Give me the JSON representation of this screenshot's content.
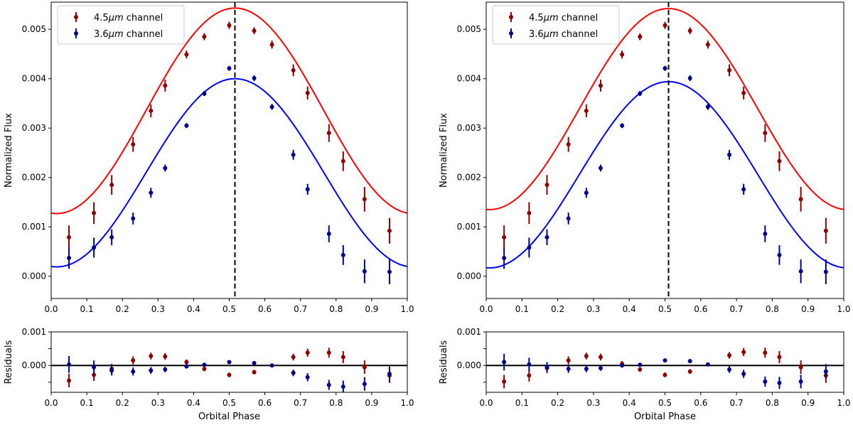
{
  "chart_data": [
    {
      "type": "scatter",
      "title": "",
      "panels": {
        "main": {
          "xlabel": "",
          "ylabel": "Normalized Flux",
          "xlim": [
            0.0,
            1.0
          ],
          "ylim": [
            -0.00045,
            0.00555
          ],
          "xticks": [
            0.0,
            0.1,
            0.2,
            0.3,
            0.4,
            0.5,
            0.6,
            0.7,
            0.8,
            0.9,
            1.0
          ],
          "xtick_labels": [
            "0.0",
            "0.1",
            "0.2",
            "0.3",
            "0.4",
            "0.5",
            "0.6",
            "0.7",
            "0.8",
            "0.9",
            "1.0"
          ],
          "yticks": [
            0.0,
            0.001,
            0.002,
            0.003,
            0.004,
            0.005
          ],
          "ytick_labels": [
            "0.000",
            "0.001",
            "0.002",
            "0.003",
            "0.004",
            "0.005"
          ],
          "vline": 0.516,
          "legend_position": "top-left",
          "model_curves": [
            {
              "name": "4.5 model",
              "color": "#ff0000",
              "min": 0.00127,
              "max": 0.00543,
              "peak": 0.516
            },
            {
              "name": "3.6 model",
              "color": "#0000ff",
              "min": 0.00019,
              "max": 0.004,
              "peak": 0.516
            }
          ],
          "series": [
            {
              "name_prefix": "4.5",
              "name_unit": "μm",
              "name_suffix": " channel",
              "color": "#8b0000",
              "x": [
                0.05,
                0.12,
                0.17,
                0.23,
                0.28,
                0.32,
                0.38,
                0.43,
                0.5,
                0.57,
                0.62,
                0.68,
                0.72,
                0.78,
                0.82,
                0.88,
                0.95
              ],
              "y": [
                0.00079,
                0.00128,
                0.00185,
                0.00267,
                0.00335,
                0.00386,
                0.00449,
                0.00485,
                0.00508,
                0.00497,
                0.00469,
                0.00417,
                0.00371,
                0.0029,
                0.00233,
                0.00156,
                0.00092
              ],
              "err": [
                0.00024,
                0.00022,
                0.0002,
                0.00015,
                0.00013,
                0.00012,
                8e-05,
                7e-05,
                7e-05,
                7e-05,
                8e-05,
                0.00012,
                0.00013,
                0.00018,
                0.0002,
                0.00025,
                0.00026
              ]
            },
            {
              "name_prefix": "3.6",
              "name_unit": "μm",
              "name_suffix": " channel",
              "color": "#00008b",
              "x": [
                0.05,
                0.12,
                0.17,
                0.23,
                0.28,
                0.32,
                0.38,
                0.43,
                0.5,
                0.57,
                0.62,
                0.68,
                0.72,
                0.78,
                0.82,
                0.88,
                0.95
              ],
              "y": [
                0.00037,
                0.00058,
                0.00079,
                0.00117,
                0.00169,
                0.00219,
                0.00305,
                0.0037,
                0.00421,
                0.00401,
                0.00343,
                0.00246,
                0.00176,
                0.00086,
                0.00043,
                0.0001,
                9e-05
              ],
              "err": [
                0.00022,
                0.0002,
                0.00016,
                0.00012,
                0.0001,
                7e-05,
                5e-05,
                5e-05,
                5e-05,
                6e-05,
                6e-05,
                0.0001,
                0.00011,
                0.00017,
                0.0002,
                0.00024,
                0.00025
              ]
            }
          ]
        },
        "residual": {
          "xlabel": "Orbital Phase",
          "ylabel": "Residuals",
          "ylim": [
            -0.0008,
            0.001
          ],
          "yticks": [
            -0.0005,
            0.0,
            0.0005,
            0.001
          ],
          "ytick_labels": [
            "",
            "0.000",
            "",
            "0.001"
          ],
          "series": [
            {
              "color": "#8b0000",
              "x": [
                0.05,
                0.12,
                0.17,
                0.23,
                0.28,
                0.32,
                0.38,
                0.43,
                0.5,
                0.57,
                0.68,
                0.72,
                0.78,
                0.82,
                0.88,
                0.95
              ],
              "y": [
                -0.00045,
                -0.00028,
                -0.0001,
                0.00015,
                0.00028,
                0.00027,
                0.0001,
                -0.0001,
                -0.00028,
                -0.0002,
                0.00025,
                0.00038,
                0.00038,
                0.00025,
                -5e-05,
                -0.0003
              ],
              "err": [
                0.0002,
                0.00018,
                0.00015,
                0.00012,
                0.0001,
                0.0001,
                8e-05,
                7e-05,
                7e-05,
                7e-05,
                0.0001,
                0.00012,
                0.00015,
                0.00018,
                0.0002,
                0.00022
              ]
            },
            {
              "color": "#00008b",
              "x": [
                0.05,
                0.12,
                0.17,
                0.23,
                0.28,
                0.32,
                0.38,
                0.43,
                0.5,
                0.57,
                0.62,
                0.68,
                0.72,
                0.78,
                0.82,
                0.88,
                0.95
              ],
              "y": [
                3e-05,
                -5e-05,
                -0.00015,
                -0.00018,
                -0.00015,
                -0.00012,
                -3e-05,
                2e-05,
                0.0001,
                7e-05,
                0.0,
                -0.00022,
                -0.00035,
                -0.00058,
                -0.00063,
                -0.00055,
                -0.00025
              ],
              "err": [
                0.00025,
                0.0002,
                0.00015,
                0.00012,
                0.0001,
                8e-05,
                6e-05,
                5e-05,
                5e-05,
                6e-05,
                6e-05,
                0.0001,
                0.00012,
                0.00015,
                0.00018,
                0.0002,
                0.00022
              ]
            }
          ]
        }
      }
    },
    {
      "type": "scatter",
      "title": "",
      "panels": {
        "main": {
          "xlabel": "",
          "ylabel": "Normalized Flux",
          "xlim": [
            0.0,
            1.0
          ],
          "ylim": [
            -0.00045,
            0.00555
          ],
          "xticks": [
            0.0,
            0.1,
            0.2,
            0.3,
            0.4,
            0.5,
            0.6,
            0.7,
            0.8,
            0.9,
            1.0
          ],
          "xtick_labels": [
            "0.0",
            "0.1",
            "0.2",
            "0.3",
            "0.4",
            "0.5",
            "0.6",
            "0.7",
            "0.8",
            "0.9",
            "1.0"
          ],
          "yticks": [
            0.0,
            0.001,
            0.002,
            0.003,
            0.004,
            0.005
          ],
          "ytick_labels": [
            "0.000",
            "0.001",
            "0.002",
            "0.003",
            "0.004",
            "0.005"
          ],
          "vline": 0.51,
          "legend_position": "top-left",
          "model_curves": [
            {
              "name": "4.5 model",
              "color": "#ff0000",
              "min": 0.00135,
              "max": 0.00542,
              "peak": 0.51
            },
            {
              "name": "3.6 model",
              "color": "#0000ff",
              "min": 0.00017,
              "max": 0.00394,
              "peak": 0.51
            }
          ],
          "series": [
            {
              "name_prefix": "4.5",
              "name_unit": "μm",
              "name_suffix": " channel",
              "color": "#8b0000",
              "x": [
                0.05,
                0.12,
                0.17,
                0.23,
                0.28,
                0.32,
                0.38,
                0.43,
                0.5,
                0.57,
                0.62,
                0.68,
                0.72,
                0.78,
                0.82,
                0.88,
                0.95
              ],
              "y": [
                0.00079,
                0.00128,
                0.00185,
                0.00267,
                0.00335,
                0.00386,
                0.00449,
                0.00485,
                0.00508,
                0.00497,
                0.00469,
                0.00417,
                0.00371,
                0.0029,
                0.00233,
                0.00156,
                0.00092
              ],
              "err": [
                0.00024,
                0.00022,
                0.0002,
                0.00015,
                0.00013,
                0.00012,
                8e-05,
                7e-05,
                7e-05,
                7e-05,
                8e-05,
                0.00012,
                0.00013,
                0.00018,
                0.0002,
                0.00025,
                0.00026
              ]
            },
            {
              "name_prefix": "3.6",
              "name_unit": "μm",
              "name_suffix": " channel",
              "color": "#00008b",
              "x": [
                0.05,
                0.12,
                0.17,
                0.23,
                0.28,
                0.32,
                0.38,
                0.43,
                0.5,
                0.57,
                0.62,
                0.68,
                0.72,
                0.78,
                0.82,
                0.88,
                0.95
              ],
              "y": [
                0.00037,
                0.00058,
                0.00079,
                0.00117,
                0.00169,
                0.00219,
                0.00305,
                0.0037,
                0.00421,
                0.00401,
                0.00343,
                0.00246,
                0.00176,
                0.00086,
                0.00043,
                0.0001,
                9e-05
              ],
              "err": [
                0.00022,
                0.0002,
                0.00016,
                0.00012,
                0.0001,
                7e-05,
                5e-05,
                5e-05,
                5e-05,
                6e-05,
                6e-05,
                0.0001,
                0.00011,
                0.00017,
                0.0002,
                0.00024,
                0.00025
              ]
            }
          ]
        },
        "residual": {
          "xlabel": "Orbital Phase",
          "ylabel": "Residuals",
          "ylim": [
            -0.0008,
            0.001
          ],
          "yticks": [
            -0.0005,
            0.0,
            0.0005,
            0.001
          ],
          "ytick_labels": [
            "",
            "0.000",
            "",
            "0.001"
          ],
          "series": [
            {
              "color": "#8b0000",
              "x": [
                0.05,
                0.12,
                0.17,
                0.23,
                0.28,
                0.32,
                0.38,
                0.43,
                0.5,
                0.57,
                0.68,
                0.72,
                0.78,
                0.82,
                0.88,
                0.95
              ],
              "y": [
                -0.00048,
                -0.0003,
                -8e-05,
                0.00015,
                0.00028,
                0.00025,
                5e-05,
                -0.00012,
                -0.00028,
                -0.00018,
                0.0003,
                0.0004,
                0.00038,
                0.00025,
                -5e-05,
                -0.0003
              ],
              "err": [
                0.0002,
                0.00018,
                0.00015,
                0.00012,
                0.0001,
                0.0001,
                8e-05,
                7e-05,
                7e-05,
                7e-05,
                0.0001,
                0.00012,
                0.00015,
                0.00018,
                0.0002,
                0.00022
              ]
            },
            {
              "color": "#00008b",
              "x": [
                0.05,
                0.12,
                0.17,
                0.23,
                0.28,
                0.32,
                0.38,
                0.43,
                0.5,
                0.57,
                0.62,
                0.68,
                0.72,
                0.78,
                0.82,
                0.88,
                0.95
              ],
              "y": [
                0.0001,
                3e-05,
                -5e-05,
                -0.0001,
                -0.0001,
                -8e-05,
                0.0,
                2e-05,
                0.00015,
                0.00013,
                3e-05,
                -0.00012,
                -0.00025,
                -0.00048,
                -0.00052,
                -0.00048,
                -0.00018
              ],
              "err": [
                0.00025,
                0.0002,
                0.00015,
                0.00012,
                0.0001,
                8e-05,
                6e-05,
                5e-05,
                5e-05,
                6e-05,
                6e-05,
                0.0001,
                0.00012,
                0.00015,
                0.00018,
                0.0002,
                0.00022
              ]
            }
          ]
        }
      }
    }
  ]
}
